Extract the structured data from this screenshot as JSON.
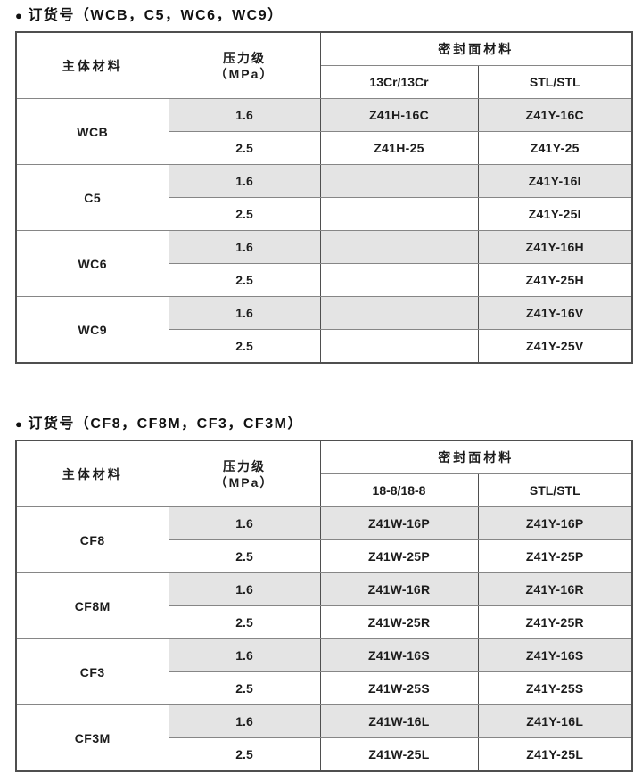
{
  "page": {
    "background": "#ffffff",
    "shade_color": "#e4e4e4",
    "border_dark": "#4f4f4f",
    "border_light": "#868686"
  },
  "tables": [
    {
      "bullet": "●",
      "title": "订货号（WCB，C5，WC6，WC9）",
      "header": {
        "body_material": "主体材料",
        "pressure_line1": "压力级",
        "pressure_line2": "（MPa）",
        "seal_material": "密封面材料",
        "seal_cols": [
          "13Cr/13Cr",
          "STL/STL"
        ]
      },
      "groups": [
        {
          "material": "WCB",
          "rows": [
            {
              "pressure": "1.6",
              "shaded": true,
              "cells": [
                "Z41H-16C",
                "Z41Y-16C"
              ]
            },
            {
              "pressure": "2.5",
              "shaded": false,
              "cells": [
                "Z41H-25",
                "Z41Y-25"
              ]
            }
          ]
        },
        {
          "material": "C5",
          "rows": [
            {
              "pressure": "1.6",
              "shaded": true,
              "cells": [
                "",
                "Z41Y-16I"
              ]
            },
            {
              "pressure": "2.5",
              "shaded": false,
              "cells": [
                "",
                "Z41Y-25I"
              ]
            }
          ]
        },
        {
          "material": "WC6",
          "rows": [
            {
              "pressure": "1.6",
              "shaded": true,
              "cells": [
                "",
                "Z41Y-16H"
              ]
            },
            {
              "pressure": "2.5",
              "shaded": false,
              "cells": [
                "",
                "Z41Y-25H"
              ]
            }
          ]
        },
        {
          "material": "WC9",
          "rows": [
            {
              "pressure": "1.6",
              "shaded": true,
              "cells": [
                "",
                "Z41Y-16V"
              ]
            },
            {
              "pressure": "2.5",
              "shaded": false,
              "cells": [
                "",
                "Z41Y-25V"
              ]
            }
          ]
        }
      ]
    },
    {
      "bullet": "●",
      "title": "订货号（CF8，CF8M，CF3，CF3M）",
      "header": {
        "body_material": "主体材料",
        "pressure_line1": "压力级",
        "pressure_line2": "（MPa）",
        "seal_material": "密封面材料",
        "seal_cols": [
          "18-8/18-8",
          "STL/STL"
        ]
      },
      "groups": [
        {
          "material": "CF8",
          "rows": [
            {
              "pressure": "1.6",
              "shaded": true,
              "cells": [
                "Z41W-16P",
                "Z41Y-16P"
              ]
            },
            {
              "pressure": "2.5",
              "shaded": false,
              "cells": [
                "Z41W-25P",
                "Z41Y-25P"
              ]
            }
          ]
        },
        {
          "material": "CF8M",
          "rows": [
            {
              "pressure": "1.6",
              "shaded": true,
              "cells": [
                "Z41W-16R",
                "Z41Y-16R"
              ]
            },
            {
              "pressure": "2.5",
              "shaded": false,
              "cells": [
                "Z41W-25R",
                "Z41Y-25R"
              ]
            }
          ]
        },
        {
          "material": "CF3",
          "rows": [
            {
              "pressure": "1.6",
              "shaded": true,
              "cells": [
                "Z41W-16S",
                "Z41Y-16S"
              ]
            },
            {
              "pressure": "2.5",
              "shaded": false,
              "cells": [
                "Z41W-25S",
                "Z41Y-25S"
              ]
            }
          ]
        },
        {
          "material": "CF3M",
          "rows": [
            {
              "pressure": "1.6",
              "shaded": true,
              "cells": [
                "Z41W-16L",
                "Z41Y-16L"
              ]
            },
            {
              "pressure": "2.5",
              "shaded": false,
              "cells": [
                "Z41W-25L",
                "Z41Y-25L"
              ]
            }
          ]
        }
      ]
    }
  ]
}
